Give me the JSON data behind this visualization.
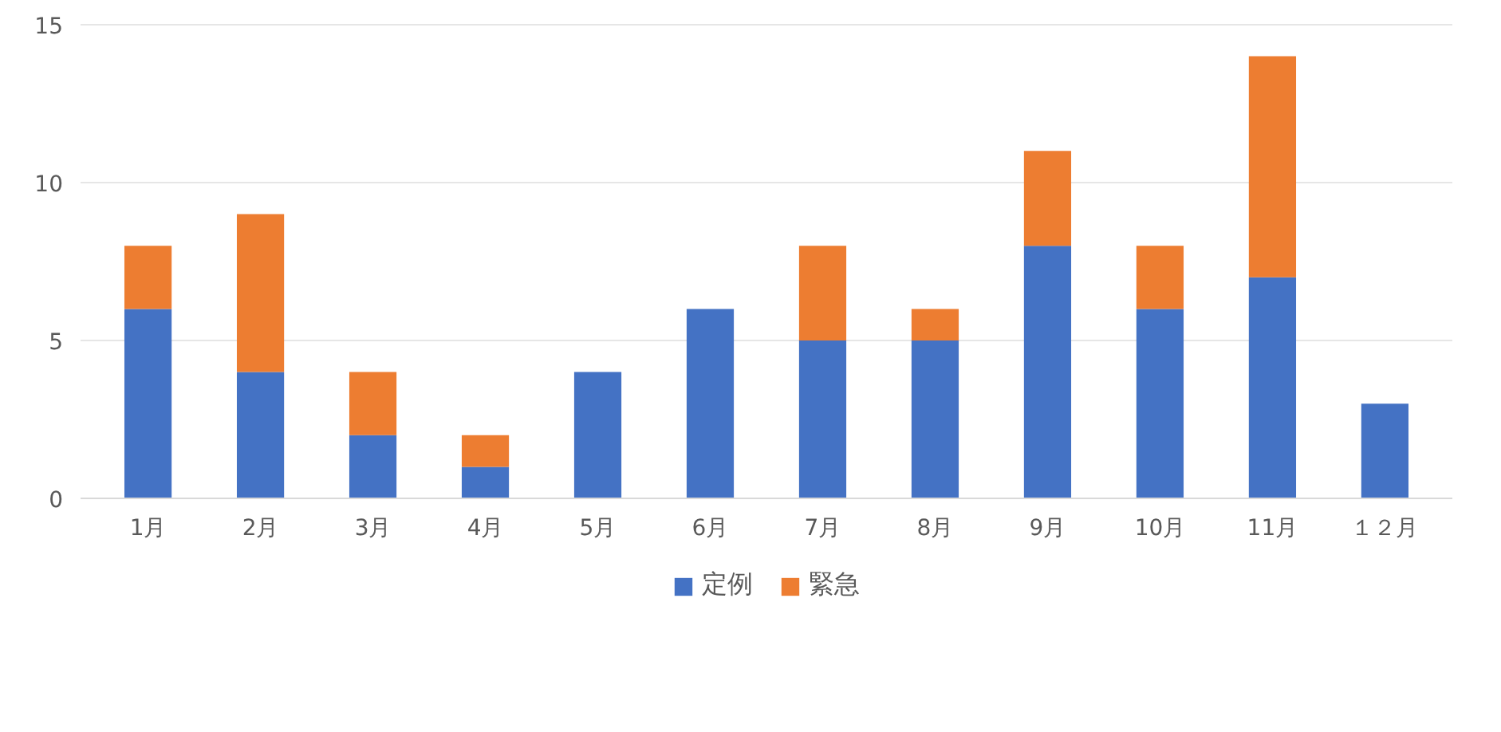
{
  "chart_data": {
    "type": "bar",
    "stacked": true,
    "categories": [
      "1月",
      "2月",
      "3月",
      "4月",
      "5月",
      "6月",
      "7月",
      "8月",
      "9月",
      "10月",
      "11月",
      "１２月"
    ],
    "series": [
      {
        "name": "定例",
        "color": "#4472c4",
        "values": [
          6,
          4,
          2,
          1,
          4,
          6,
          5,
          5,
          8,
          6,
          7,
          3
        ]
      },
      {
        "name": "緊急",
        "color": "#ed7d31",
        "values": [
          2,
          5,
          2,
          1,
          0,
          0,
          3,
          1,
          3,
          2,
          7,
          0
        ]
      }
    ],
    "ylim": [
      0,
      15
    ],
    "yticks": [
      0,
      5,
      10,
      15
    ],
    "grid": "y",
    "legend": "bottom"
  }
}
